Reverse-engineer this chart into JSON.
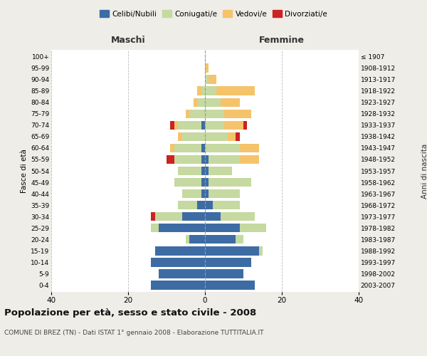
{
  "age_groups": [
    "0-4",
    "5-9",
    "10-14",
    "15-19",
    "20-24",
    "25-29",
    "30-34",
    "35-39",
    "40-44",
    "45-49",
    "50-54",
    "55-59",
    "60-64",
    "65-69",
    "70-74",
    "75-79",
    "80-84",
    "85-89",
    "90-94",
    "95-99",
    "100+"
  ],
  "birth_years": [
    "2003-2007",
    "1998-2002",
    "1993-1997",
    "1988-1992",
    "1983-1987",
    "1978-1982",
    "1973-1977",
    "1968-1972",
    "1963-1967",
    "1958-1962",
    "1953-1957",
    "1948-1952",
    "1943-1947",
    "1938-1942",
    "1933-1937",
    "1928-1932",
    "1923-1927",
    "1918-1922",
    "1913-1917",
    "1908-1912",
    "≤ 1907"
  ],
  "males": {
    "celibi": [
      14,
      12,
      14,
      13,
      4,
      12,
      6,
      2,
      1,
      1,
      1,
      1,
      1,
      0,
      1,
      0,
      0,
      0,
      0,
      0,
      0
    ],
    "coniugati": [
      0,
      0,
      0,
      0,
      1,
      2,
      7,
      5,
      5,
      7,
      6,
      7,
      7,
      6,
      6,
      4,
      2,
      1,
      0,
      0,
      0
    ],
    "vedovi": [
      0,
      0,
      0,
      0,
      0,
      0,
      0,
      0,
      0,
      0,
      0,
      0,
      1,
      1,
      1,
      1,
      1,
      1,
      0,
      0,
      0
    ],
    "divorziati": [
      0,
      0,
      0,
      0,
      0,
      0,
      1,
      0,
      0,
      0,
      0,
      2,
      0,
      0,
      1,
      0,
      0,
      0,
      0,
      0,
      0
    ]
  },
  "females": {
    "nubili": [
      13,
      10,
      12,
      14,
      8,
      9,
      4,
      2,
      1,
      1,
      1,
      1,
      0,
      0,
      0,
      0,
      0,
      0,
      0,
      0,
      0
    ],
    "coniugate": [
      0,
      0,
      0,
      1,
      2,
      7,
      9,
      7,
      8,
      11,
      6,
      8,
      9,
      6,
      5,
      5,
      4,
      3,
      1,
      0,
      0
    ],
    "vedove": [
      0,
      0,
      0,
      0,
      0,
      0,
      0,
      0,
      0,
      0,
      0,
      5,
      5,
      2,
      5,
      7,
      5,
      10,
      2,
      1,
      0
    ],
    "divorziate": [
      0,
      0,
      0,
      0,
      0,
      0,
      0,
      0,
      0,
      0,
      0,
      0,
      0,
      1,
      1,
      0,
      0,
      0,
      0,
      0,
      0
    ]
  },
  "colors": {
    "celibi_nubili": "#3d6ca5",
    "coniugati": "#c5d9a0",
    "vedovi": "#f5c36a",
    "divorziati": "#cc2222"
  },
  "xlim": 40,
  "title": "Popolazione per età, sesso e stato civile - 2008",
  "subtitle": "COMUNE DI BREZ (TN) - Dati ISTAT 1° gennaio 2008 - Elaborazione TUTTITALIA.IT",
  "ylabel": "Fasce di età",
  "ylabel2": "Anni di nascita",
  "xlabel_left": "Maschi",
  "xlabel_right": "Femmine",
  "bg_color": "#eeede8",
  "plot_bg": "#ffffff"
}
